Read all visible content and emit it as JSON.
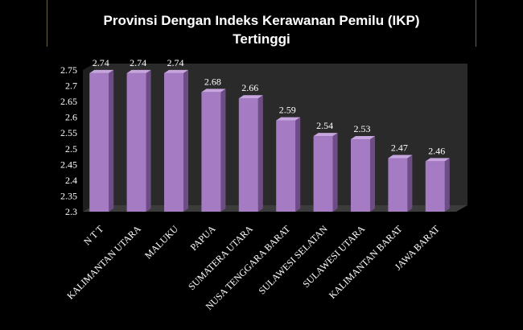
{
  "chart_data": {
    "type": "bar",
    "title_line1": "Provinsi Dengan Indeks Kerawanan Pemilu (IKP)",
    "title_line2": "Tertinggi",
    "categories": [
      "N T T",
      "KALIMANTAN UTARA",
      "MALUKU",
      "PAPUA",
      "SUMATERA UTARA",
      "NUSA TENGGARA BARAT",
      "SULAWESI SELATAN",
      "SULAWESI UTARA",
      "KALIMANTAN BARAT",
      "JAWA BARAT"
    ],
    "values": [
      2.74,
      2.74,
      2.74,
      2.68,
      2.66,
      2.59,
      2.54,
      2.53,
      2.47,
      2.46
    ],
    "value_labels": [
      "2.74",
      "2.74",
      "2.74",
      "2.68",
      "2.66",
      "2.59",
      "2.54",
      "2.53",
      "2.47",
      "2.46"
    ],
    "y_ticks": [
      "2.3",
      "2.35",
      "2.4",
      "2.45",
      "2.5",
      "2.55",
      "2.6",
      "2.65",
      "2.7",
      "2.75"
    ],
    "ylim": [
      2.3,
      2.75
    ],
    "grid": false,
    "colors": {
      "bar_front": "#a57cc4",
      "bar_side": "#6e4d86",
      "bar_top": "#c7a6e0",
      "wall": "#2a2a2a",
      "floor": "#3c3c3c"
    }
  }
}
